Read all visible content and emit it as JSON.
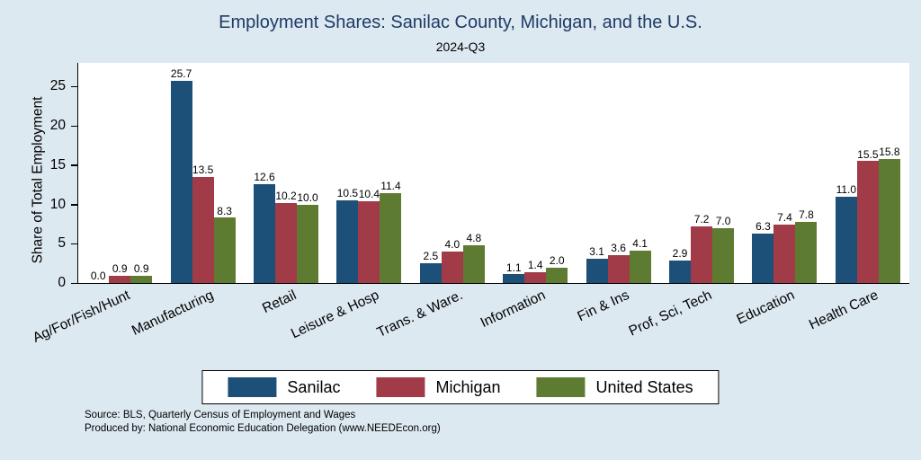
{
  "chart_data": {
    "type": "bar",
    "title": "Employment Shares: Sanilac County, Michigan, and the U.S.",
    "subtitle": "2024-Q3",
    "ylabel": "Share of Total Employment",
    "ylim": [
      0,
      28
    ],
    "yticks": [
      0,
      5,
      10,
      15,
      20,
      25
    ],
    "grid": false,
    "legend_position": "bottom",
    "categories": [
      "Ag/For/Fish/Hunt",
      "Manufacturing",
      "Retail",
      "Leisure & Hosp",
      "Trans. & Ware.",
      "Information",
      "Fin & Ins",
      "Prof, Sci, Tech",
      "Education",
      "Health Care"
    ],
    "series": [
      {
        "name": "Sanilac",
        "color": "#1d5078",
        "values": [
          0.0,
          25.7,
          12.6,
          10.5,
          2.5,
          1.1,
          3.1,
          2.9,
          6.3,
          11.0
        ]
      },
      {
        "name": "Michigan",
        "color": "#a03b47",
        "values": [
          0.9,
          13.5,
          10.2,
          10.4,
          4.0,
          1.4,
          3.6,
          7.2,
          7.4,
          15.5
        ]
      },
      {
        "name": "United States",
        "color": "#5e7c31",
        "values": [
          0.9,
          8.3,
          10.0,
          11.4,
          4.8,
          2.0,
          4.1,
          7.0,
          7.8,
          15.8
        ]
      }
    ]
  },
  "source": {
    "line1": "Source: BLS, Quarterly Census of Employment and Wages",
    "line2": "Produced by: National Economic Education Delegation (www.NEEDEcon.org)"
  },
  "colors": {
    "background": "#dde9f1",
    "plot_bg": "#ffffff",
    "title": "#1e3a66",
    "axis": "#000000"
  }
}
